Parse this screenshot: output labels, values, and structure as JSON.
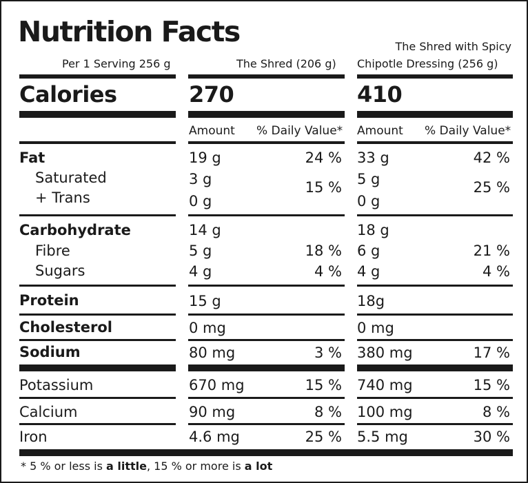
{
  "title": "Nutrition Facts",
  "serving": "Per 1 Serving 256 g",
  "columns": [
    {
      "header_lines": [
        "The Shred (206 g)"
      ],
      "calories": "270"
    },
    {
      "header_lines": [
        "The Shred with Spicy",
        "Chipotle Dressing (256 g)"
      ],
      "calories": "410"
    }
  ],
  "calories_label": "Calories",
  "amount_label": "Amount",
  "dv_label": "% Daily Value*",
  "rows": {
    "fat": {
      "label": "Fat",
      "v1": "19 g",
      "p1": "24 %",
      "v2": "33 g",
      "p2": "42 %"
    },
    "saturated": {
      "label": "Saturated",
      "v1": "3 g",
      "v2": "5 g"
    },
    "trans": {
      "label": "+ Trans",
      "v1": "0 g",
      "v2": "0 g"
    },
    "sat_trans_pct": {
      "p1": "15 %",
      "p2": "25 %"
    },
    "carbohydrate": {
      "label": "Carbohydrate",
      "v1": "14 g",
      "v2": "18 g"
    },
    "fibre": {
      "label": "Fibre",
      "v1": "5 g",
      "p1": "18 %",
      "v2": "6 g",
      "p2": "21 %"
    },
    "sugars": {
      "label": "Sugars",
      "v1": "4 g",
      "p1": "4 %",
      "v2": "4 g",
      "p2": "4 %"
    },
    "protein": {
      "label": "Protein",
      "v1": "15 g",
      "v2": "18g"
    },
    "cholesterol": {
      "label": "Cholesterol",
      "v1": "0 mg",
      "v2": "0 mg"
    },
    "sodium": {
      "label": "Sodium",
      "v1": "80 mg",
      "p1": "3 %",
      "v2": "380 mg",
      "p2": "17 %"
    },
    "potassium": {
      "label": "Potassium",
      "v1": "670 mg",
      "p1": "15 %",
      "v2": "740 mg",
      "p2": "15 %"
    },
    "calcium": {
      "label": "Calcium",
      "v1": "90 mg",
      "p1": "8 %",
      "v2": "100 mg",
      "p2": "8 %"
    },
    "iron": {
      "label": "Iron",
      "v1": "4.6 mg",
      "p1": "25 %",
      "v2": "5.5 mg",
      "p2": "30 %"
    }
  },
  "footnote": {
    "prefix": "* 5 % or less is ",
    "little": "a little",
    "middle": ", 15 %  or more is ",
    "lot": "a lot"
  }
}
